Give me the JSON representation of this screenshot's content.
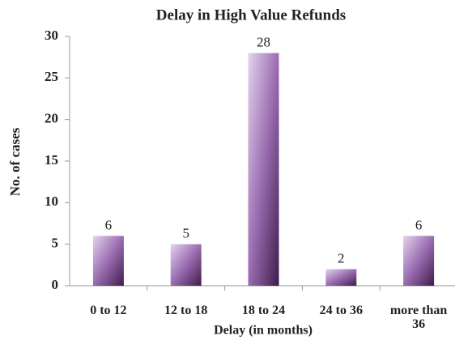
{
  "chart_data": {
    "type": "bar",
    "title": "Delay in High Value Refunds",
    "x_label": "Delay (in months)",
    "y_label": "No. of cases",
    "categories": [
      "0 to 12",
      "12 to 18",
      "18 to 24",
      "24 to 36",
      "more than 36"
    ],
    "values": [
      6,
      5,
      28,
      2,
      6
    ],
    "color": "#9a6cb0",
    "ylim": [
      0,
      30
    ],
    "yticks": [
      0,
      5,
      10,
      15,
      20,
      25,
      30
    ],
    "grid": false
  }
}
